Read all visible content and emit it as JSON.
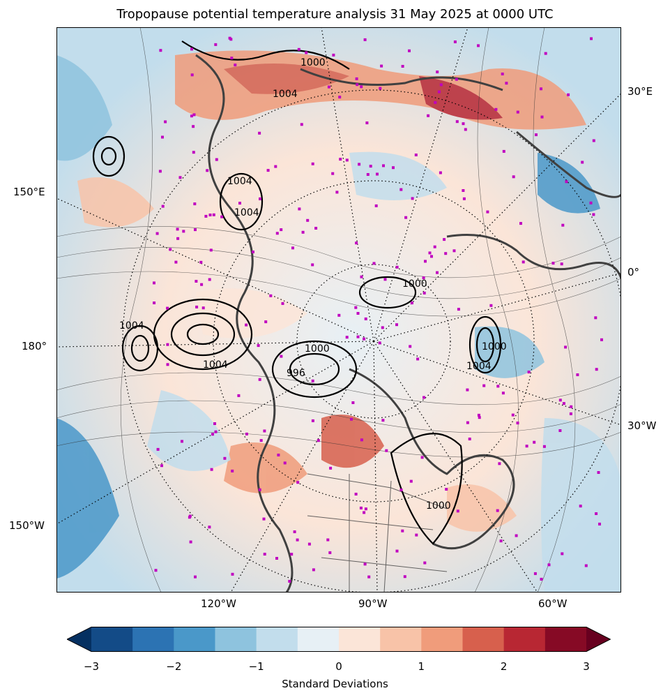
{
  "title": "Tropopause potential temperature analysis 31 May 2025 at 0000 UTC",
  "map": {
    "lon_labels_right": [
      "30°E",
      "0°",
      "30°W"
    ],
    "lon_labels_left": [
      "150°E",
      "180°",
      "150°W"
    ],
    "lon_labels_bottom": [
      "120°W",
      "90°W",
      "60°W"
    ],
    "pressure_contour_labels": [
      "1000",
      "1004",
      "1004",
      "1004",
      "1004",
      "1000",
      "1000",
      "1004",
      "1000",
      "996",
      "1000",
      "1004"
    ],
    "colors": {
      "station_markers": "#c000c0",
      "coastlines": "#404040",
      "pressure_contours": "#000000"
    }
  },
  "colorbar": {
    "label": "Standard Deviations",
    "ticks": [
      "−3",
      "−2",
      "−1",
      "0",
      "1",
      "2",
      "3"
    ],
    "colors": [
      "#053061",
      "#134b87",
      "#2c73b3",
      "#4a98c9",
      "#8ec3de",
      "#c2ddec",
      "#e7f0f5",
      "#fbe5d8",
      "#f8c3a8",
      "#f09c7b",
      "#d7604d",
      "#b82733",
      "#860a25",
      "#67001f"
    ]
  }
}
